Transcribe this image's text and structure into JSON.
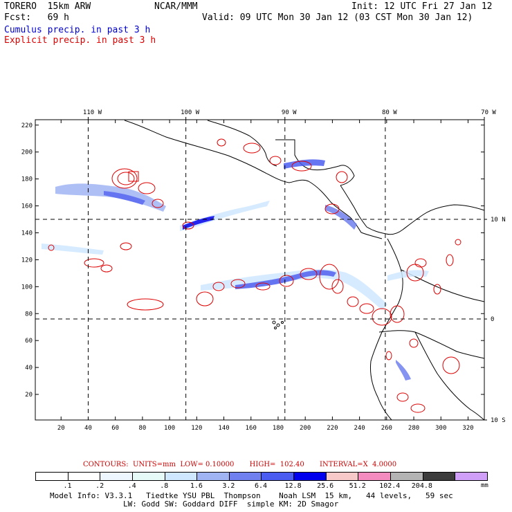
{
  "header": {
    "model": "TORERO  15km ARW",
    "org": "NCAR/MMM",
    "init": "Init: 12 UTC Fri 27 Jan 12",
    "fcst": "Fcst:   69 h",
    "valid": "Valid: 09 UTC Mon 30 Jan 12 (03 CST Mon 30 Jan 12)",
    "field1": "Cumulus precip. in past 3 h",
    "field2": "Explicit precip. in past 3 h"
  },
  "map": {
    "top_lon_labels": [
      "110 W",
      "100 W",
      "90 W",
      "80 W",
      "70 W"
    ],
    "right_lat_labels": [
      "10 N",
      "0",
      "10 S"
    ],
    "y_ticks": [
      "220",
      "200",
      "180",
      "160",
      "140",
      "120",
      "100",
      "80",
      "60",
      "40",
      "20"
    ],
    "x_ticks": [
      "20",
      "40",
      "60",
      "80",
      "100",
      "120",
      "140",
      "160",
      "180",
      "200",
      "220",
      "240",
      "260",
      "280",
      "300",
      "320"
    ],
    "grid_x_values": [
      40,
      112,
      185,
      259
    ],
    "grid_y_values": [
      150,
      76
    ],
    "x_range": [
      1,
      332
    ],
    "y_range": [
      1,
      224
    ]
  },
  "contours": {
    "text_units": "CONTOURS:  UNITS=mm  LOW= 0.10000",
    "text_high": "HIGH=  102.40",
    "text_interval": "INTERVAL=X  4.0000"
  },
  "legend": {
    "labels": [
      ".1",
      ".2",
      ".4",
      ".8",
      "1.6",
      "3.2",
      "6.4",
      "12.8",
      "25.6",
      "51.2",
      "102.4",
      "204.8"
    ],
    "unit": "mm",
    "colors": [
      "#ffffff",
      "#ffffff",
      "#eef6ff",
      "#e6fbf7",
      "#cfe8ff",
      "#a0b4f4",
      "#7080ee",
      "#4b5df0",
      "#0000ee",
      "#f7c9c9",
      "#f58cbf",
      "#b4b4b4",
      "#3c3c3c",
      "#d0a0f8"
    ]
  },
  "model_info": {
    "line1": "Model Info: V3.3.1   Tiedtke YSU PBL  Thompson    Noah LSM  15 km,   44 levels,   59 sec",
    "line2": "                LW: Godd SW: Goddard DIFF  simple KM: 2D Smagor"
  }
}
